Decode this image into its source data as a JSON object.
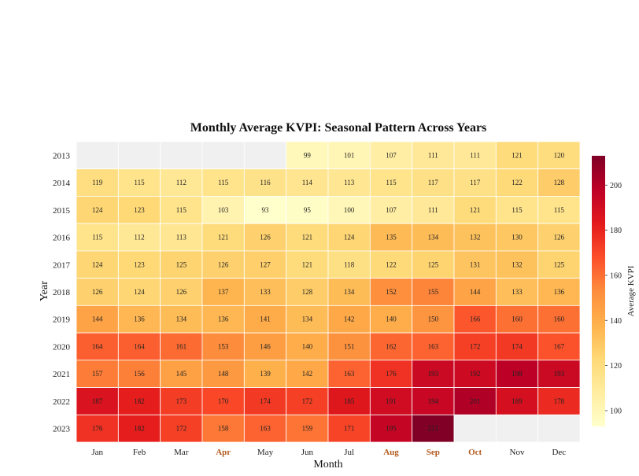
{
  "chart_data": {
    "type": "heatmap",
    "title": "Monthly Average KVPI: Seasonal Pattern Across Years",
    "xlabel": "Month",
    "ylabel": "Year",
    "x": [
      "Jan",
      "Feb",
      "Mar",
      "Apr",
      "May",
      "Jun",
      "Jul",
      "Aug",
      "Sep",
      "Oct",
      "Nov",
      "Dec"
    ],
    "highlighted_months": [
      "Apr",
      "Aug",
      "Sep",
      "Oct"
    ],
    "highlight_color": "#b25a1e",
    "y": [
      "2013",
      "2014",
      "2015",
      "2016",
      "2017",
      "2018",
      "2019",
      "2020",
      "2021",
      "2022",
      "2023"
    ],
    "values": [
      [
        null,
        null,
        null,
        null,
        null,
        99,
        101,
        107,
        111,
        111,
        121,
        120
      ],
      [
        119,
        115,
        112,
        115,
        116,
        114,
        113,
        115,
        117,
        117,
        122,
        128
      ],
      [
        124,
        123,
        115,
        103,
        93,
        95,
        100,
        107,
        111,
        121,
        115,
        115
      ],
      [
        115,
        112,
        113,
        121,
        126,
        121,
        124,
        135,
        134,
        132,
        130,
        126
      ],
      [
        124,
        123,
        125,
        126,
        127,
        121,
        118,
        122,
        125,
        131,
        132,
        125
      ],
      [
        126,
        124,
        126,
        137,
        133,
        128,
        134,
        152,
        155,
        144,
        133,
        136
      ],
      [
        144,
        136,
        134,
        136,
        141,
        134,
        142,
        140,
        150,
        166,
        160,
        160
      ],
      [
        164,
        164,
        161,
        153,
        146,
        140,
        151,
        162,
        163,
        172,
        174,
        167
      ],
      [
        157,
        156,
        145,
        148,
        139,
        142,
        163,
        176,
        193,
        192,
        198,
        193
      ],
      [
        187,
        182,
        173,
        170,
        174,
        172,
        185,
        191,
        194,
        201,
        189,
        178
      ],
      [
        176,
        182,
        172,
        158,
        163,
        159,
        171,
        195,
        213,
        null,
        null,
        null
      ]
    ],
    "colorbar": {
      "label": "Average KVPI",
      "range": [
        93,
        213
      ],
      "ticks": [
        100,
        120,
        140,
        160,
        180,
        200
      ],
      "colormap": "YlOrRd"
    },
    "missing_color": "#f0f0f0"
  }
}
